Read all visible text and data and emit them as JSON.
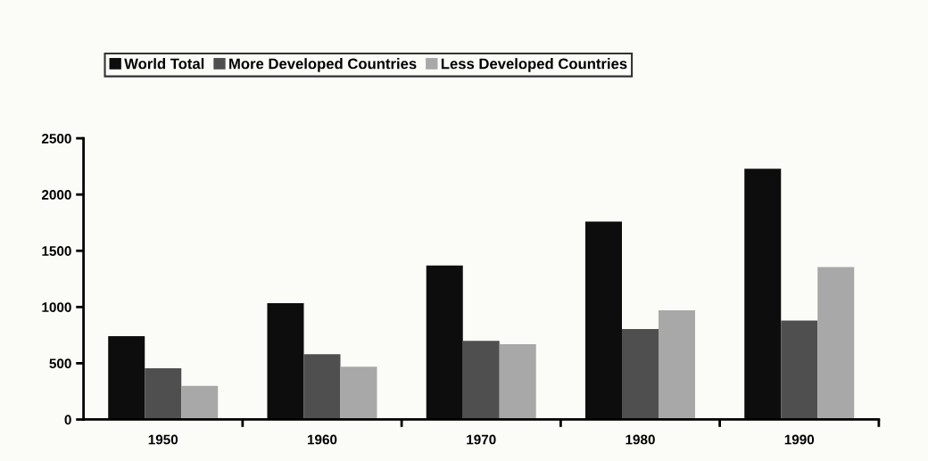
{
  "chart_data": {
    "type": "bar",
    "categories": [
      "1950",
      "1960",
      "1970",
      "1980",
      "1990"
    ],
    "series": [
      {
        "name": "World Total",
        "color": "#0d0d0d",
        "values": [
          740,
          1035,
          1370,
          1760,
          2230
        ]
      },
      {
        "name": "More Developed Countries",
        "color": "#4f4f4f",
        "values": [
          455,
          580,
          700,
          805,
          880
        ]
      },
      {
        "name": "Less Developed Countries",
        "color": "#a8a8a8",
        "values": [
          300,
          470,
          670,
          970,
          1355
        ]
      }
    ],
    "ylim": [
      0,
      2500
    ],
    "yticks": [
      0,
      500,
      1000,
      1500,
      2000,
      2500
    ],
    "grid": false,
    "legend": "top left"
  }
}
